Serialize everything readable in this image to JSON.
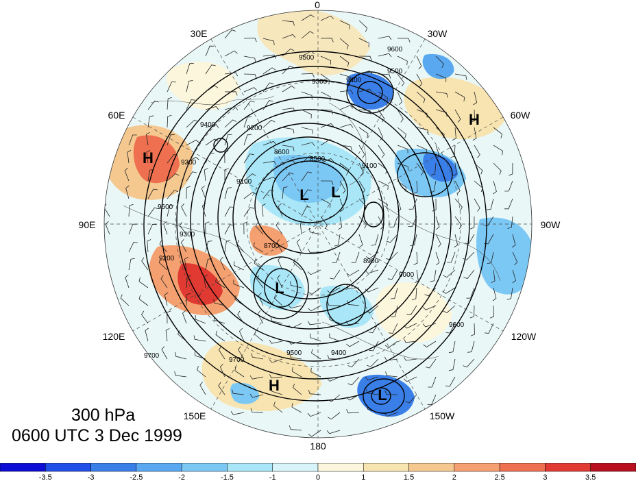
{
  "caption": {
    "level": "300 hPa",
    "time": "0600 UTC 3 Dec 1999"
  },
  "longitude_labels": [
    {
      "text": "0",
      "name": "lon-label-0"
    },
    {
      "text": "30W",
      "name": "lon-label-30w"
    },
    {
      "text": "60W",
      "name": "lon-label-60w"
    },
    {
      "text": "90W",
      "name": "lon-label-90w"
    },
    {
      "text": "120W",
      "name": "lon-label-120w"
    },
    {
      "text": "150W",
      "name": "lon-label-150w"
    },
    {
      "text": "180",
      "name": "lon-label-180"
    },
    {
      "text": "150E",
      "name": "lon-label-150e"
    },
    {
      "text": "120E",
      "name": "lon-label-120e"
    },
    {
      "text": "90E",
      "name": "lon-label-90e"
    },
    {
      "text": "60E",
      "name": "lon-label-60e"
    },
    {
      "text": "30E",
      "name": "lon-label-30e"
    }
  ],
  "pressure_centers": [
    {
      "text": "H",
      "name": "high-center-west-atlantic"
    },
    {
      "text": "H",
      "name": "high-center-central-asia"
    },
    {
      "text": "H",
      "name": "high-center-pacific"
    },
    {
      "text": "L",
      "name": "low-center-arctic-1"
    },
    {
      "text": "L",
      "name": "low-center-arctic-2"
    },
    {
      "text": "L",
      "name": "low-center-east-siberia"
    },
    {
      "text": "L",
      "name": "low-center-gulf-of-alaska"
    }
  ],
  "contour_labels": [
    "9600",
    "9500",
    "9400",
    "9300",
    "9200",
    "9100",
    "8600",
    "8500",
    "8700",
    "9000",
    "8900",
    "9600",
    "9500",
    "9400",
    "9300",
    "9700",
    "9700",
    "9600",
    "9500",
    "9400",
    "9100",
    "9200",
    "9300"
  ],
  "colorbar": {
    "colors": [
      "#0d0dd6",
      "#1f4fe6",
      "#3a7ee8",
      "#5aa8f0",
      "#7cc8f5",
      "#a9e6f7",
      "#d6f4fa",
      "#fbf6dc",
      "#f7e4b0",
      "#f5c890",
      "#f4a070",
      "#ee7050",
      "#e03a32",
      "#b8101e"
    ],
    "ticks": [
      "-3.5",
      "-3",
      "-2.5",
      "-2",
      "-1.5",
      "-1",
      "0",
      "1",
      "1.5",
      "2",
      "2.5",
      "3",
      "3.5"
    ]
  }
}
